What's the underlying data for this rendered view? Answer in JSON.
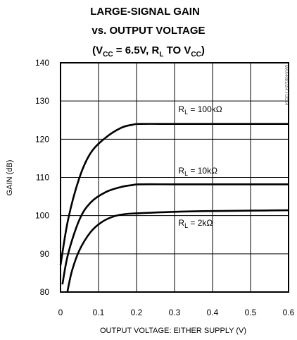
{
  "chart_data": {
    "type": "line",
    "title": {
      "line1": "LARGE-SIGNAL GAIN",
      "line2": "vs. OUTPUT VOLTAGE",
      "line3": {
        "open": "(V",
        "vcc_sub": "CC",
        "mid": " = 6.5V,  R",
        "rl_sub": "L",
        "mid2": " TO V",
        "vcc2_sub": "CC",
        "close": ")"
      }
    },
    "xlabel": "OUTPUT VOLTAGE: EITHER SUPPLY (V)",
    "ylabel": "GAIN (dB)",
    "xlim": [
      0,
      0.6
    ],
    "ylim": [
      80,
      140
    ],
    "xticks": [
      "0",
      "0.1",
      "0.2",
      "0.3",
      "0.4",
      "0.5",
      "0.6"
    ],
    "yticks": [
      "80",
      "90",
      "100",
      "110",
      "120",
      "130",
      "140"
    ],
    "grid": true,
    "watermark": "MAX4091/2/4 TOC14",
    "series": [
      {
        "name": "RL = 100kΩ",
        "label": {
          "pre": "R",
          "sub": "L",
          "post": " = 100kΩ"
        },
        "x": [
          0.0,
          0.02,
          0.05,
          0.08,
          0.12,
          0.16,
          0.19,
          0.21,
          0.3,
          0.4,
          0.5,
          0.6
        ],
        "y": [
          87,
          99,
          110,
          116.5,
          120.5,
          123,
          123.8,
          124,
          124,
          124,
          124,
          124
        ]
      },
      {
        "name": "RL = 10kΩ",
        "label": {
          "pre": "R",
          "sub": "L",
          "post": " = 10kΩ"
        },
        "x": [
          0.005,
          0.02,
          0.05,
          0.08,
          0.12,
          0.16,
          0.19,
          0.21,
          0.3,
          0.4,
          0.5,
          0.6
        ],
        "y": [
          82,
          90,
          99,
          103.5,
          106.2,
          107.5,
          108,
          108.2,
          108.2,
          108.2,
          108.2,
          108.2
        ]
      },
      {
        "name": "RL = 2kΩ",
        "label": {
          "pre": "R",
          "sub": "L",
          "post": " = 2kΩ"
        },
        "x": [
          0.018,
          0.03,
          0.05,
          0.08,
          0.11,
          0.14,
          0.17,
          0.2,
          0.3,
          0.4,
          0.5,
          0.6
        ],
        "y": [
          80,
          85.5,
          91,
          95.8,
          98.4,
          99.8,
          100.4,
          100.6,
          101,
          101.2,
          101.3,
          101.4
        ]
      }
    ]
  }
}
